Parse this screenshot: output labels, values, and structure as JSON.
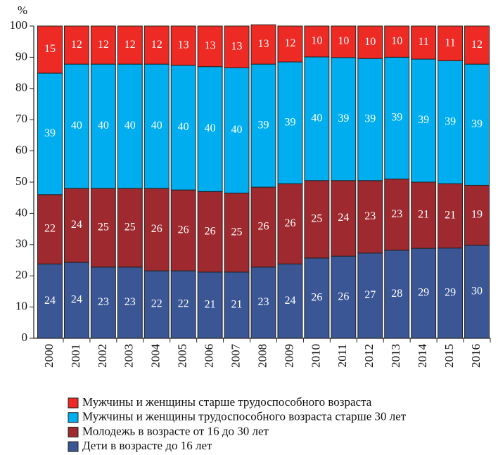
{
  "chart_data": {
    "type": "stacked_bar",
    "y_unit_label": "%",
    "categories": [
      "2000",
      "2001",
      "2002",
      "2003",
      "2004",
      "2005",
      "2006",
      "2007",
      "2008",
      "2009",
      "2010",
      "2011",
      "2012",
      "2013",
      "2014",
      "2015",
      "2016"
    ],
    "series": [
      {
        "name": "Дети в возрасте до 16 лет",
        "color": "#3b5694",
        "values": [
          23.8,
          24.3,
          22.8,
          22.8,
          21.6,
          21.6,
          21.2,
          21.2,
          22.8,
          23.8,
          25.7,
          26.3,
          27.3,
          28.2,
          28.8,
          28.9,
          29.8
        ],
        "value_labels": [
          "24",
          "24",
          "23",
          "23",
          "22",
          "22",
          "21",
          "21",
          "23",
          "24",
          "26",
          "26",
          "27",
          "28",
          "29",
          "29",
          "30"
        ]
      },
      {
        "name": "Молодежь в возрасте от 16 до 30 лет",
        "color": "#9e2a2f",
        "values": [
          22.2,
          23.7,
          25.2,
          25.2,
          26.4,
          25.9,
          25.8,
          25.3,
          25.6,
          25.7,
          24.8,
          24.2,
          23.2,
          22.8,
          21.2,
          20.6,
          19.2
        ],
        "value_labels": [
          "22",
          "24",
          "25",
          "25",
          "26",
          "26",
          "26",
          "25",
          "26",
          "26",
          "25",
          "24",
          "23",
          "23",
          "21",
          "21",
          "19"
        ]
      },
      {
        "name": "Мужчины и женщины трудоспособного возраста старше 30 лет",
        "color": "#00aeef",
        "values": [
          38.9,
          39.8,
          39.8,
          39.8,
          39.8,
          39.9,
          40,
          40.1,
          39.4,
          39.0,
          39.6,
          39.4,
          39.1,
          39.0,
          39.4,
          39.4,
          38.8
        ],
        "value_labels": [
          "39",
          "40",
          "40",
          "40",
          "40",
          "40",
          "40",
          "40",
          "39",
          "39",
          "40",
          "39",
          "39",
          "39",
          "39",
          "39",
          "39"
        ]
      },
      {
        "name": "Мужчины и женщины старше трудоспособного возраста",
        "color": "#ee2a24",
        "values": [
          15.1,
          12.2,
          12.2,
          12.2,
          12.2,
          12.6,
          13,
          13.4,
          12.6,
          11.5,
          9.9,
          10.1,
          10.4,
          10.0,
          10.6,
          11.1,
          12.2
        ],
        "value_labels": [
          "15",
          "12",
          "12",
          "12",
          "12",
          "13",
          "13",
          "13",
          "13",
          "12",
          "10",
          "10",
          "10",
          "10",
          "11",
          "11",
          "12"
        ]
      }
    ],
    "ylim": [
      0,
      100
    ],
    "yticks": [
      0,
      10,
      20,
      30,
      40,
      50,
      60,
      70,
      80,
      90,
      100
    ],
    "legend": "bottom"
  }
}
